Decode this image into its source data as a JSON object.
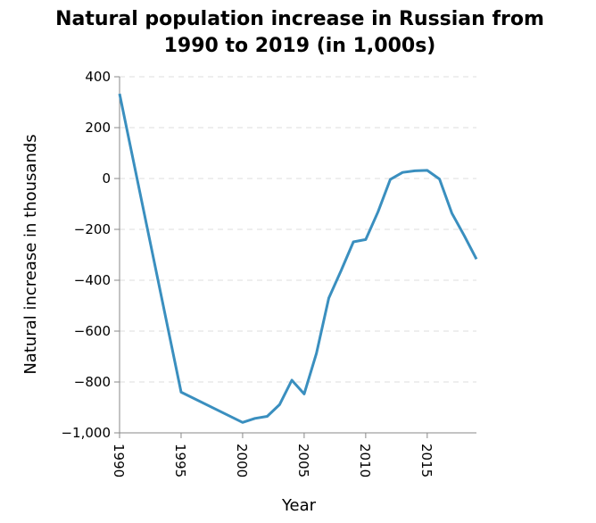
{
  "chart_data": {
    "type": "line",
    "title": [
      "Natural population increase in Russian from",
      "1990 to 2019 (in 1,000s)"
    ],
    "xlabel": "Year",
    "ylabel": "Natural increase in thousands",
    "xlim": [
      1990,
      2019
    ],
    "ylim": [
      -1000,
      400
    ],
    "x_ticks": [
      1990,
      1995,
      2000,
      2005,
      2010,
      2015
    ],
    "y_ticks": [
      400,
      200,
      0,
      -200,
      -400,
      -600,
      -800,
      -1000
    ],
    "y_tick_labels": [
      "400",
      "200",
      "0",
      "−200",
      "−400",
      "−600",
      "−800",
      "−1,000"
    ],
    "grid": true,
    "series": [
      {
        "color": "#3a8fbf",
        "x": [
          1990,
          1995,
          2000,
          2001,
          2002,
          2003,
          2004,
          2005,
          2006,
          2007,
          2008,
          2009,
          2010,
          2011,
          2012,
          2013,
          2014,
          2015,
          2016,
          2017,
          2018,
          2019
        ],
        "y": [
          333,
          -840,
          -959,
          -943,
          -935,
          -889,
          -793,
          -847,
          -687,
          -470,
          -362,
          -249,
          -240,
          -131,
          -4,
          24,
          30,
          32,
          -2,
          -136,
          -224,
          -317
        ]
      }
    ]
  }
}
